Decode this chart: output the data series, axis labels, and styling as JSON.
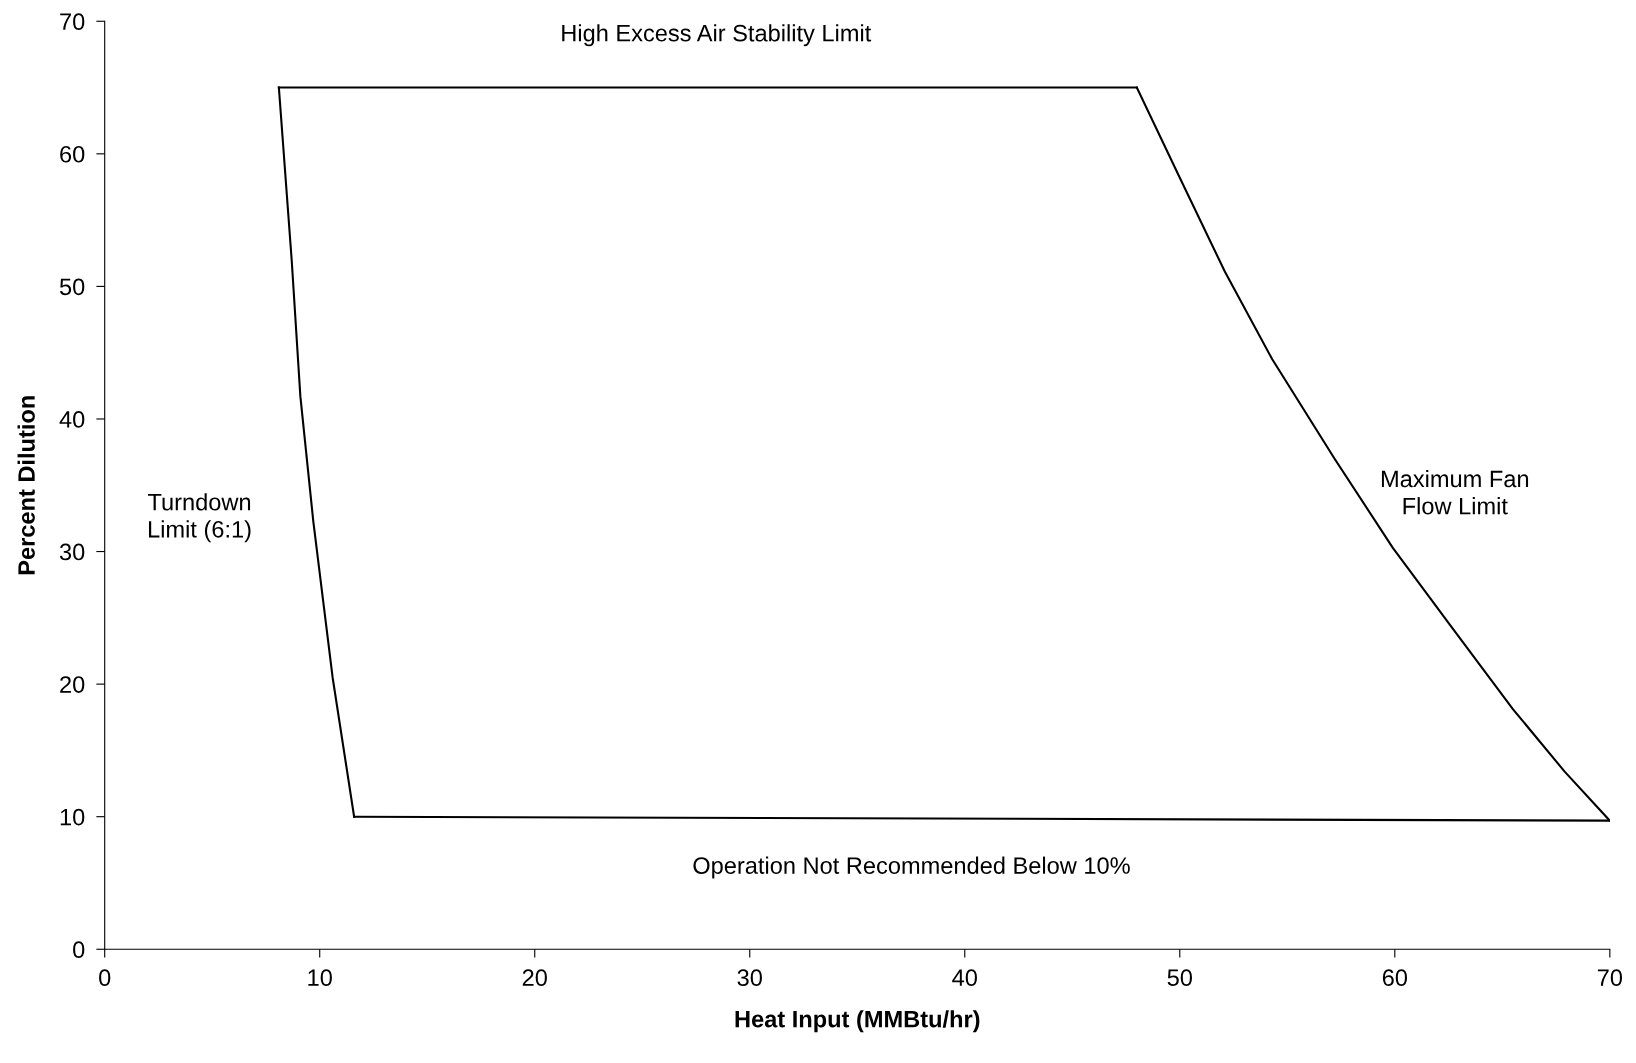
{
  "chart_data": {
    "type": "line",
    "xlabel": "Heat Input (MMBtu/hr)",
    "ylabel": "Percent Dilution",
    "series": [
      {
        "color": "#000000",
        "x": [
          8.1,
          48.0
        ],
        "values": [
          65,
          65
        ]
      },
      {
        "color": "#000000",
        "x": [
          48.0,
          50.0,
          52.1,
          54.3,
          57.2,
          59.9,
          62.6,
          65.5,
          67.9,
          70.0
        ],
        "values": [
          65,
          58.2,
          51.1,
          44.5,
          37.0,
          30.3,
          24.4,
          18.1,
          13.4,
          9.7
        ]
      },
      {
        "color": "#000000",
        "x": [
          11.6,
          70.0
        ],
        "values": [
          10.0,
          9.7
        ]
      },
      {
        "color": "#000000",
        "x": [
          8.1,
          8.7,
          9.1,
          9.7,
          10.6,
          11.6
        ],
        "values": [
          65,
          51.9,
          41.7,
          32.3,
          20.5,
          10.0
        ]
      }
    ],
    "annotations": [
      "High Excess Air Stability Limit",
      "Turndown\nLimit (6:1)",
      "Maximum Fan\nFlow Limit",
      "Operation Not Recommended Below 10%"
    ],
    "xlim": [
      0,
      70
    ],
    "ylim": [
      0,
      70
    ],
    "xticks": [
      0,
      10,
      20,
      30,
      40,
      50,
      60,
      70
    ],
    "yticks": [
      0,
      10,
      20,
      30,
      40,
      50,
      60,
      70
    ],
    "grid": false,
    "legend": false,
    "marker": "none",
    "line_style": "solid"
  }
}
